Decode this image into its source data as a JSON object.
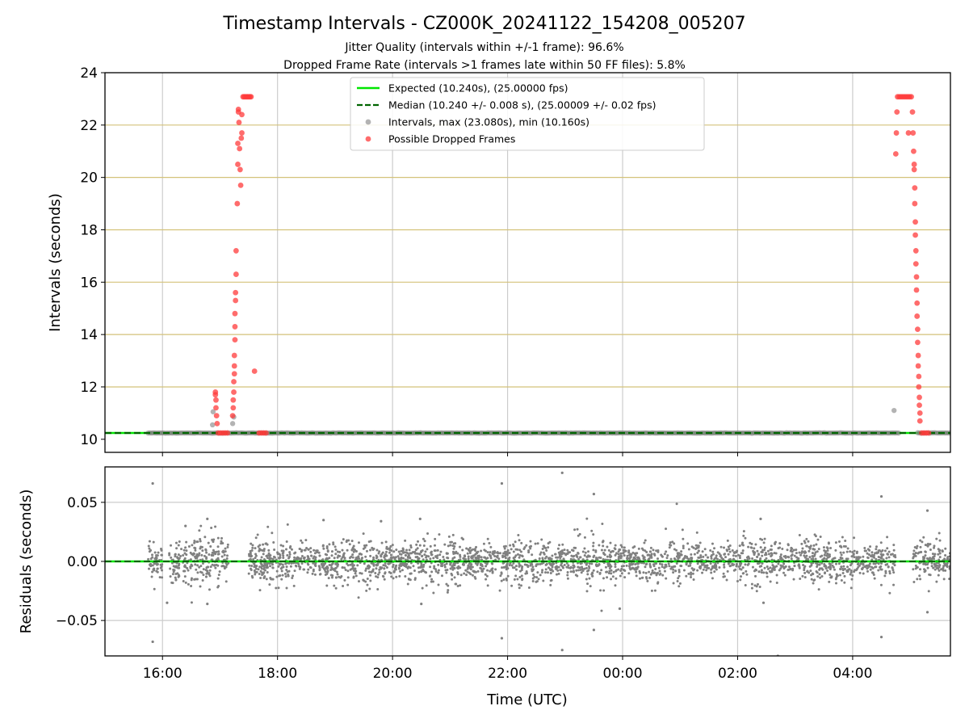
{
  "title": "Timestamp Intervals - CZ000K_20241122_154208_005207",
  "subtitle_lines": [
    "Jitter Quality (intervals within +/-1 frame): 96.6%",
    "Dropped Frame Rate (intervals >1 frames late within 50 FF files): 5.8%"
  ],
  "colors": {
    "expected": "#00e600",
    "median": "#006400",
    "intervals": "#808080",
    "dropped": "#ff3b3b",
    "gold_grid": "#d4c27a",
    "grid": "#cccccc"
  },
  "chart_data": [
    {
      "type": "scatter",
      "xlabel": "",
      "ylabel": "Intervals (seconds)",
      "x_unit": "hours after 16:00 UTC on 2024-11-22 (x axis printed as clock time)",
      "xlim": [
        -1.0,
        13.7
      ],
      "ylim": [
        9.5,
        24
      ],
      "yticks": [
        10,
        12,
        14,
        16,
        18,
        20,
        22,
        24
      ],
      "y_gridlines_gold": [
        10.24,
        12,
        14,
        16,
        18,
        20,
        22
      ],
      "legend_position": "upper center",
      "legend": [
        "Expected (10.240s), (25.00000 fps)",
        "Median (10.240 +/- 0.008 s), (25.00009 +/- 0.02 fps)",
        "Intervals, max (23.080s), min (10.160s)",
        "Possible Dropped Frames"
      ],
      "expected_interval": 10.24,
      "median_interval": 10.24,
      "intervals_range": [
        -0.25,
        13.7
      ],
      "intervals_value": 10.24,
      "intervals_gaps": [
        [
          12.8,
          13.1
        ]
      ],
      "intervals_extra": [
        {
          "x": 0.87,
          "y": 10.55
        },
        {
          "x": 0.88,
          "y": 11.05
        },
        {
          "x": 1.22,
          "y": 10.6
        },
        {
          "x": 1.24,
          "y": 10.85
        },
        {
          "x": 12.72,
          "y": 11.1
        }
      ],
      "dropped_frames": [
        {
          "x": 0.92,
          "y": 11.8
        },
        {
          "x": 0.92,
          "y": 11.7
        },
        {
          "x": 0.93,
          "y": 11.5
        },
        {
          "x": 0.93,
          "y": 11.2
        },
        {
          "x": 0.94,
          "y": 10.9
        },
        {
          "x": 0.95,
          "y": 10.6
        },
        {
          "x": 0.97,
          "y": 10.24
        },
        {
          "x": 1.01,
          "y": 10.24
        },
        {
          "x": 1.05,
          "y": 10.24
        },
        {
          "x": 1.09,
          "y": 10.24
        },
        {
          "x": 1.13,
          "y": 10.24
        },
        {
          "x": 1.22,
          "y": 10.9
        },
        {
          "x": 1.23,
          "y": 11.2
        },
        {
          "x": 1.23,
          "y": 11.5
        },
        {
          "x": 1.24,
          "y": 11.8
        },
        {
          "x": 1.24,
          "y": 12.2
        },
        {
          "x": 1.25,
          "y": 12.5
        },
        {
          "x": 1.25,
          "y": 12.8
        },
        {
          "x": 1.25,
          "y": 13.2
        },
        {
          "x": 1.26,
          "y": 13.8
        },
        {
          "x": 1.26,
          "y": 14.3
        },
        {
          "x": 1.26,
          "y": 14.8
        },
        {
          "x": 1.27,
          "y": 15.3
        },
        {
          "x": 1.27,
          "y": 15.6
        },
        {
          "x": 1.28,
          "y": 16.3
        },
        {
          "x": 1.28,
          "y": 17.2
        },
        {
          "x": 1.3,
          "y": 19.0
        },
        {
          "x": 1.31,
          "y": 20.5
        },
        {
          "x": 1.31,
          "y": 21.3
        },
        {
          "x": 1.32,
          "y": 22.5
        },
        {
          "x": 1.32,
          "y": 22.6
        },
        {
          "x": 1.33,
          "y": 22.1
        },
        {
          "x": 1.34,
          "y": 21.1
        },
        {
          "x": 1.35,
          "y": 20.3
        },
        {
          "x": 1.36,
          "y": 19.7
        },
        {
          "x": 1.37,
          "y": 21.5
        },
        {
          "x": 1.38,
          "y": 21.7
        },
        {
          "x": 1.38,
          "y": 22.4
        },
        {
          "x": 1.4,
          "y": 23.08
        },
        {
          "x": 1.42,
          "y": 23.08
        },
        {
          "x": 1.44,
          "y": 23.08
        },
        {
          "x": 1.46,
          "y": 23.08
        },
        {
          "x": 1.48,
          "y": 23.08
        },
        {
          "x": 1.5,
          "y": 23.08
        },
        {
          "x": 1.52,
          "y": 23.08
        },
        {
          "x": 1.54,
          "y": 23.08
        },
        {
          "x": 1.6,
          "y": 12.6
        },
        {
          "x": 1.68,
          "y": 10.24
        },
        {
          "x": 1.72,
          "y": 10.24
        },
        {
          "x": 1.76,
          "y": 10.24
        },
        {
          "x": 1.8,
          "y": 10.24
        },
        {
          "x": 12.75,
          "y": 20.9
        },
        {
          "x": 12.76,
          "y": 21.7
        },
        {
          "x": 12.77,
          "y": 22.5
        },
        {
          "x": 12.78,
          "y": 23.08
        },
        {
          "x": 12.81,
          "y": 23.08
        },
        {
          "x": 12.84,
          "y": 23.08
        },
        {
          "x": 12.87,
          "y": 23.08
        },
        {
          "x": 12.9,
          "y": 23.08
        },
        {
          "x": 12.93,
          "y": 23.08
        },
        {
          "x": 12.96,
          "y": 23.08
        },
        {
          "x": 12.99,
          "y": 23.08
        },
        {
          "x": 13.02,
          "y": 23.08
        },
        {
          "x": 12.97,
          "y": 21.7
        },
        {
          "x": 13.04,
          "y": 22.5
        },
        {
          "x": 13.05,
          "y": 21.7
        },
        {
          "x": 13.06,
          "y": 21.0
        },
        {
          "x": 13.07,
          "y": 20.5
        },
        {
          "x": 13.07,
          "y": 20.3
        },
        {
          "x": 13.08,
          "y": 19.6
        },
        {
          "x": 13.08,
          "y": 19.0
        },
        {
          "x": 13.09,
          "y": 18.3
        },
        {
          "x": 13.09,
          "y": 17.8
        },
        {
          "x": 13.1,
          "y": 17.2
        },
        {
          "x": 13.1,
          "y": 16.7
        },
        {
          "x": 13.11,
          "y": 16.2
        },
        {
          "x": 13.11,
          "y": 15.7
        },
        {
          "x": 13.12,
          "y": 15.2
        },
        {
          "x": 13.12,
          "y": 14.7
        },
        {
          "x": 13.13,
          "y": 14.2
        },
        {
          "x": 13.13,
          "y": 13.7
        },
        {
          "x": 13.14,
          "y": 13.2
        },
        {
          "x": 13.14,
          "y": 12.8
        },
        {
          "x": 13.15,
          "y": 12.4
        },
        {
          "x": 13.15,
          "y": 12.0
        },
        {
          "x": 13.16,
          "y": 11.6
        },
        {
          "x": 13.16,
          "y": 11.3
        },
        {
          "x": 13.17,
          "y": 11.0
        },
        {
          "x": 13.17,
          "y": 10.7
        },
        {
          "x": 13.2,
          "y": 10.24
        },
        {
          "x": 13.24,
          "y": 10.24
        },
        {
          "x": 13.28,
          "y": 10.24
        },
        {
          "x": 13.32,
          "y": 10.24
        }
      ]
    },
    {
      "type": "scatter",
      "xlabel": "Time (UTC)",
      "ylabel": "Residuals (seconds)",
      "x_unit": "hours after 16:00 UTC on 2024-11-22 (x axis printed as clock time)",
      "xlim": [
        -1.0,
        13.7
      ],
      "ylim": [
        -0.08,
        0.08
      ],
      "yticks": [
        0.05,
        0.0,
        -0.05
      ],
      "ytick_labels": [
        "0.05",
        "0.00",
        "−0.05"
      ],
      "xticks": [
        0,
        2,
        4,
        6,
        8,
        10,
        12
      ],
      "xtick_labels": [
        "16:00",
        "18:00",
        "20:00",
        "22:00",
        "00:00",
        "02:00",
        "04:00"
      ],
      "zero_line": 0.0,
      "residual_segments": [
        [
          -0.25,
          0.0
        ],
        [
          0.1,
          1.15
        ],
        [
          1.5,
          12.75
        ],
        [
          13.05,
          13.7
        ]
      ],
      "residual_spread": 0.006,
      "residual_count": 3000,
      "residual_outliers": [
        {
          "x": -0.17,
          "y": 0.066
        },
        {
          "x": -0.17,
          "y": -0.068
        },
        {
          "x": 0.4,
          "y": 0.03
        },
        {
          "x": 0.78,
          "y": 0.036
        },
        {
          "x": 0.78,
          "y": -0.036
        },
        {
          "x": 0.08,
          "y": -0.035
        },
        {
          "x": 5.9,
          "y": 0.066
        },
        {
          "x": 5.9,
          "y": -0.065
        },
        {
          "x": 6.95,
          "y": 0.075
        },
        {
          "x": 6.95,
          "y": -0.075
        },
        {
          "x": 7.5,
          "y": 0.057
        },
        {
          "x": 7.5,
          "y": -0.058
        },
        {
          "x": 7.95,
          "y": -0.04
        },
        {
          "x": 10.7,
          "y": -0.08
        },
        {
          "x": 12.5,
          "y": 0.055
        },
        {
          "x": 12.5,
          "y": -0.064
        },
        {
          "x": 13.3,
          "y": 0.043
        },
        {
          "x": 13.3,
          "y": -0.043
        },
        {
          "x": 4.48,
          "y": 0.036
        },
        {
          "x": 4.5,
          "y": -0.036
        },
        {
          "x": 3.8,
          "y": 0.034
        },
        {
          "x": 2.8,
          "y": 0.035
        },
        {
          "x": 10.4,
          "y": 0.036
        },
        {
          "x": 10.45,
          "y": -0.035
        }
      ]
    }
  ]
}
